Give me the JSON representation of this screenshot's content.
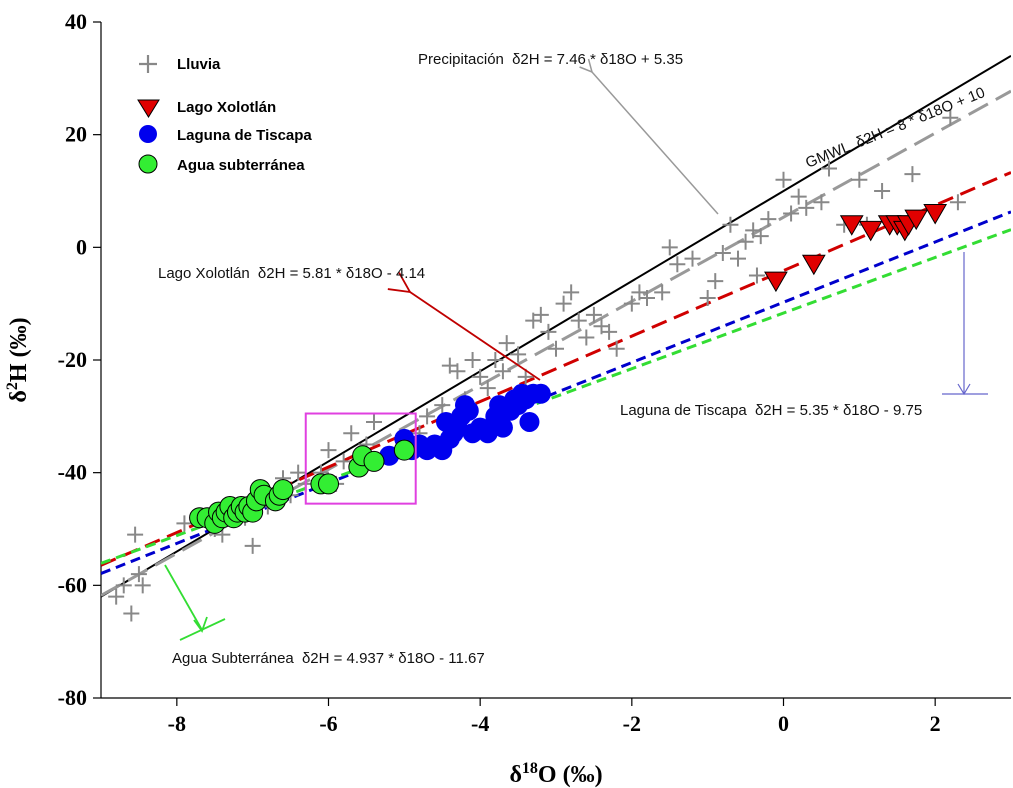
{
  "chart_data": {
    "type": "scatter",
    "title": "",
    "xlabel": "δ18O (‰)",
    "ylabel": "δ2H (‰)",
    "xlim": [
      -9,
      3
    ],
    "ylim": [
      -80,
      40
    ],
    "x_ticks": [
      -8,
      -6,
      -4,
      -2,
      0,
      2
    ],
    "y_ticks": [
      -80,
      -60,
      -40,
      -20,
      0,
      20,
      40
    ],
    "grid": false,
    "legend_position": "top-left",
    "series": [
      {
        "name": "Lluvia",
        "marker": "plus",
        "color": "#888888",
        "points": [
          [
            -8.8,
            -62
          ],
          [
            -8.7,
            -60
          ],
          [
            -8.6,
            -65
          ],
          [
            -8.55,
            -51
          ],
          [
            -8.5,
            -58
          ],
          [
            -8.45,
            -60
          ],
          [
            -7.9,
            -49
          ],
          [
            -7.5,
            -50
          ],
          [
            -7.4,
            -51
          ],
          [
            -7.35,
            -48
          ],
          [
            -7.2,
            -47
          ],
          [
            -7.1,
            -48
          ],
          [
            -7.0,
            -53
          ],
          [
            -6.9,
            -44
          ],
          [
            -6.8,
            -46
          ],
          [
            -6.6,
            -41
          ],
          [
            -6.5,
            -44
          ],
          [
            -6.4,
            -40
          ],
          [
            -6.3,
            -42
          ],
          [
            -6.1,
            -40
          ],
          [
            -6.0,
            -36
          ],
          [
            -5.9,
            -42
          ],
          [
            -5.8,
            -38
          ],
          [
            -5.7,
            -33
          ],
          [
            -5.5,
            -35
          ],
          [
            -5.4,
            -31
          ],
          [
            -5.2,
            -37
          ],
          [
            -5.0,
            -34
          ],
          [
            -4.8,
            -33
          ],
          [
            -4.7,
            -30
          ],
          [
            -4.5,
            -28
          ],
          [
            -4.4,
            -21
          ],
          [
            -4.3,
            -22
          ],
          [
            -4.2,
            -27
          ],
          [
            -4.1,
            -20
          ],
          [
            -4.0,
            -23
          ],
          [
            -3.9,
            -25
          ],
          [
            -3.8,
            -20
          ],
          [
            -3.7,
            -22
          ],
          [
            -3.65,
            -17
          ],
          [
            -3.5,
            -19
          ],
          [
            -3.4,
            -23
          ],
          [
            -3.3,
            -13
          ],
          [
            -3.2,
            -12
          ],
          [
            -3.1,
            -15
          ],
          [
            -3.0,
            -18
          ],
          [
            -2.9,
            -10
          ],
          [
            -2.8,
            -8
          ],
          [
            -2.7,
            -13
          ],
          [
            -2.6,
            -16
          ],
          [
            -2.5,
            -12
          ],
          [
            -2.4,
            -14
          ],
          [
            -2.3,
            -15
          ],
          [
            -2.2,
            -18
          ],
          [
            -2.0,
            -10
          ],
          [
            -1.9,
            -8
          ],
          [
            -1.8,
            -9
          ],
          [
            -1.6,
            -8
          ],
          [
            -1.5,
            0
          ],
          [
            -1.4,
            -3
          ],
          [
            -1.0,
            -9
          ],
          [
            -0.9,
            -6
          ],
          [
            -0.8,
            -1
          ],
          [
            -0.7,
            4
          ],
          [
            -0.6,
            -2
          ],
          [
            -0.5,
            1
          ],
          [
            -0.4,
            3
          ],
          [
            -0.3,
            2
          ],
          [
            -0.2,
            5
          ],
          [
            0.0,
            12
          ],
          [
            0.1,
            6
          ],
          [
            0.2,
            9
          ],
          [
            0.3,
            7
          ],
          [
            0.5,
            8
          ],
          [
            0.8,
            4
          ],
          [
            1.0,
            12
          ],
          [
            1.1,
            4
          ],
          [
            1.3,
            10
          ],
          [
            1.7,
            13
          ],
          [
            2.2,
            23
          ],
          [
            2.3,
            8
          ],
          [
            -0.35,
            -5
          ],
          [
            0.6,
            14
          ],
          [
            -1.2,
            -2
          ]
        ]
      },
      {
        "name": "Lago Xolotlán",
        "marker": "triangle-down",
        "color": "#e00000",
        "points": [
          [
            -0.1,
            -6
          ],
          [
            0.4,
            -3
          ],
          [
            0.9,
            4
          ],
          [
            1.15,
            3
          ],
          [
            1.4,
            4
          ],
          [
            1.5,
            4
          ],
          [
            1.6,
            3
          ],
          [
            1.65,
            4
          ],
          [
            1.75,
            5
          ],
          [
            2.0,
            6
          ]
        ]
      },
      {
        "name": "Laguna de Tiscapa",
        "marker": "circle",
        "color": "#0000ee",
        "points": [
          [
            -5.2,
            -37
          ],
          [
            -5.0,
            -34
          ],
          [
            -4.9,
            -36
          ],
          [
            -4.8,
            -35
          ],
          [
            -4.7,
            -36
          ],
          [
            -4.6,
            -35
          ],
          [
            -4.5,
            -36
          ],
          [
            -4.4,
            -34
          ],
          [
            -4.35,
            -33
          ],
          [
            -4.3,
            -32
          ],
          [
            -4.25,
            -30
          ],
          [
            -4.2,
            -28
          ],
          [
            -4.1,
            -33
          ],
          [
            -4.0,
            -32
          ],
          [
            -3.9,
            -33
          ],
          [
            -3.8,
            -30
          ],
          [
            -3.7,
            -32
          ],
          [
            -3.6,
            -29
          ],
          [
            -3.55,
            -27
          ],
          [
            -3.5,
            -28
          ],
          [
            -3.45,
            -26
          ],
          [
            -3.4,
            -27
          ],
          [
            -3.35,
            -31
          ],
          [
            -3.3,
            -26
          ],
          [
            -3.2,
            -26
          ],
          [
            -4.45,
            -31
          ],
          [
            -4.15,
            -29
          ],
          [
            -3.75,
            -28
          ]
        ]
      },
      {
        "name": "Agua subterránea",
        "marker": "circle",
        "color": "#33ee33",
        "points": [
          [
            -7.7,
            -48
          ],
          [
            -7.6,
            -48
          ],
          [
            -7.5,
            -49
          ],
          [
            -7.45,
            -47
          ],
          [
            -7.4,
            -48
          ],
          [
            -7.35,
            -47
          ],
          [
            -7.3,
            -46
          ],
          [
            -7.25,
            -48
          ],
          [
            -7.2,
            -47
          ],
          [
            -7.15,
            -46
          ],
          [
            -7.1,
            -47
          ],
          [
            -7.05,
            -46
          ],
          [
            -7.0,
            -47
          ],
          [
            -6.95,
            -45
          ],
          [
            -6.9,
            -43
          ],
          [
            -6.85,
            -44
          ],
          [
            -6.7,
            -45
          ],
          [
            -6.65,
            -44
          ],
          [
            -6.6,
            -43
          ],
          [
            -6.1,
            -42
          ],
          [
            -6.0,
            -42
          ],
          [
            -5.6,
            -39
          ],
          [
            -5.55,
            -37
          ],
          [
            -5.4,
            -38
          ],
          [
            -5.0,
            -36
          ]
        ]
      }
    ],
    "lines": [
      {
        "id": "gmwl",
        "slope": 8,
        "intercept": 10,
        "color": "#000000",
        "style": "solid"
      },
      {
        "id": "precip",
        "slope": 7.46,
        "intercept": 5.35,
        "color": "#999999",
        "style": "long-dash"
      },
      {
        "id": "xolotlan",
        "slope": 5.81,
        "intercept": -4.14,
        "color": "#d00000",
        "style": "dash"
      },
      {
        "id": "tiscapa",
        "slope": 5.35,
        "intercept": -9.75,
        "color": "#0000cc",
        "style": "short-dash"
      },
      {
        "id": "subterranea",
        "slope": 4.937,
        "intercept": -11.67,
        "color": "#33dd33",
        "style": "short-dash"
      }
    ],
    "annotations": {
      "precip": {
        "text": "Precipitación",
        "eq": "δ2H = 7.46 * δ18O + 5.35",
        "color": "#999999"
      },
      "gmwl": {
        "text": "GMWL",
        "eq": "δ2H = 8 * δ18O + 10"
      },
      "xolotlan": {
        "text": "Lago Xolotlán",
        "eq": "δ2H = 5.81 * δ18O - 4.14",
        "color": "#c00000"
      },
      "tiscapa": {
        "text": "Laguna de Tiscapa",
        "eq": "δ2H = 5.35 * δ18O - 9.75",
        "color": "#4444cc"
      },
      "subterranea": {
        "text": "Agua Subterránea",
        "eq": "δ2H = 4.937 * δ18O - 11.67",
        "color": "#33dd33"
      }
    },
    "highlight_box": {
      "x_range": [
        -6.3,
        -4.85
      ],
      "y_range": [
        -45.5,
        -29.5
      ],
      "color": "#e040e0"
    }
  }
}
